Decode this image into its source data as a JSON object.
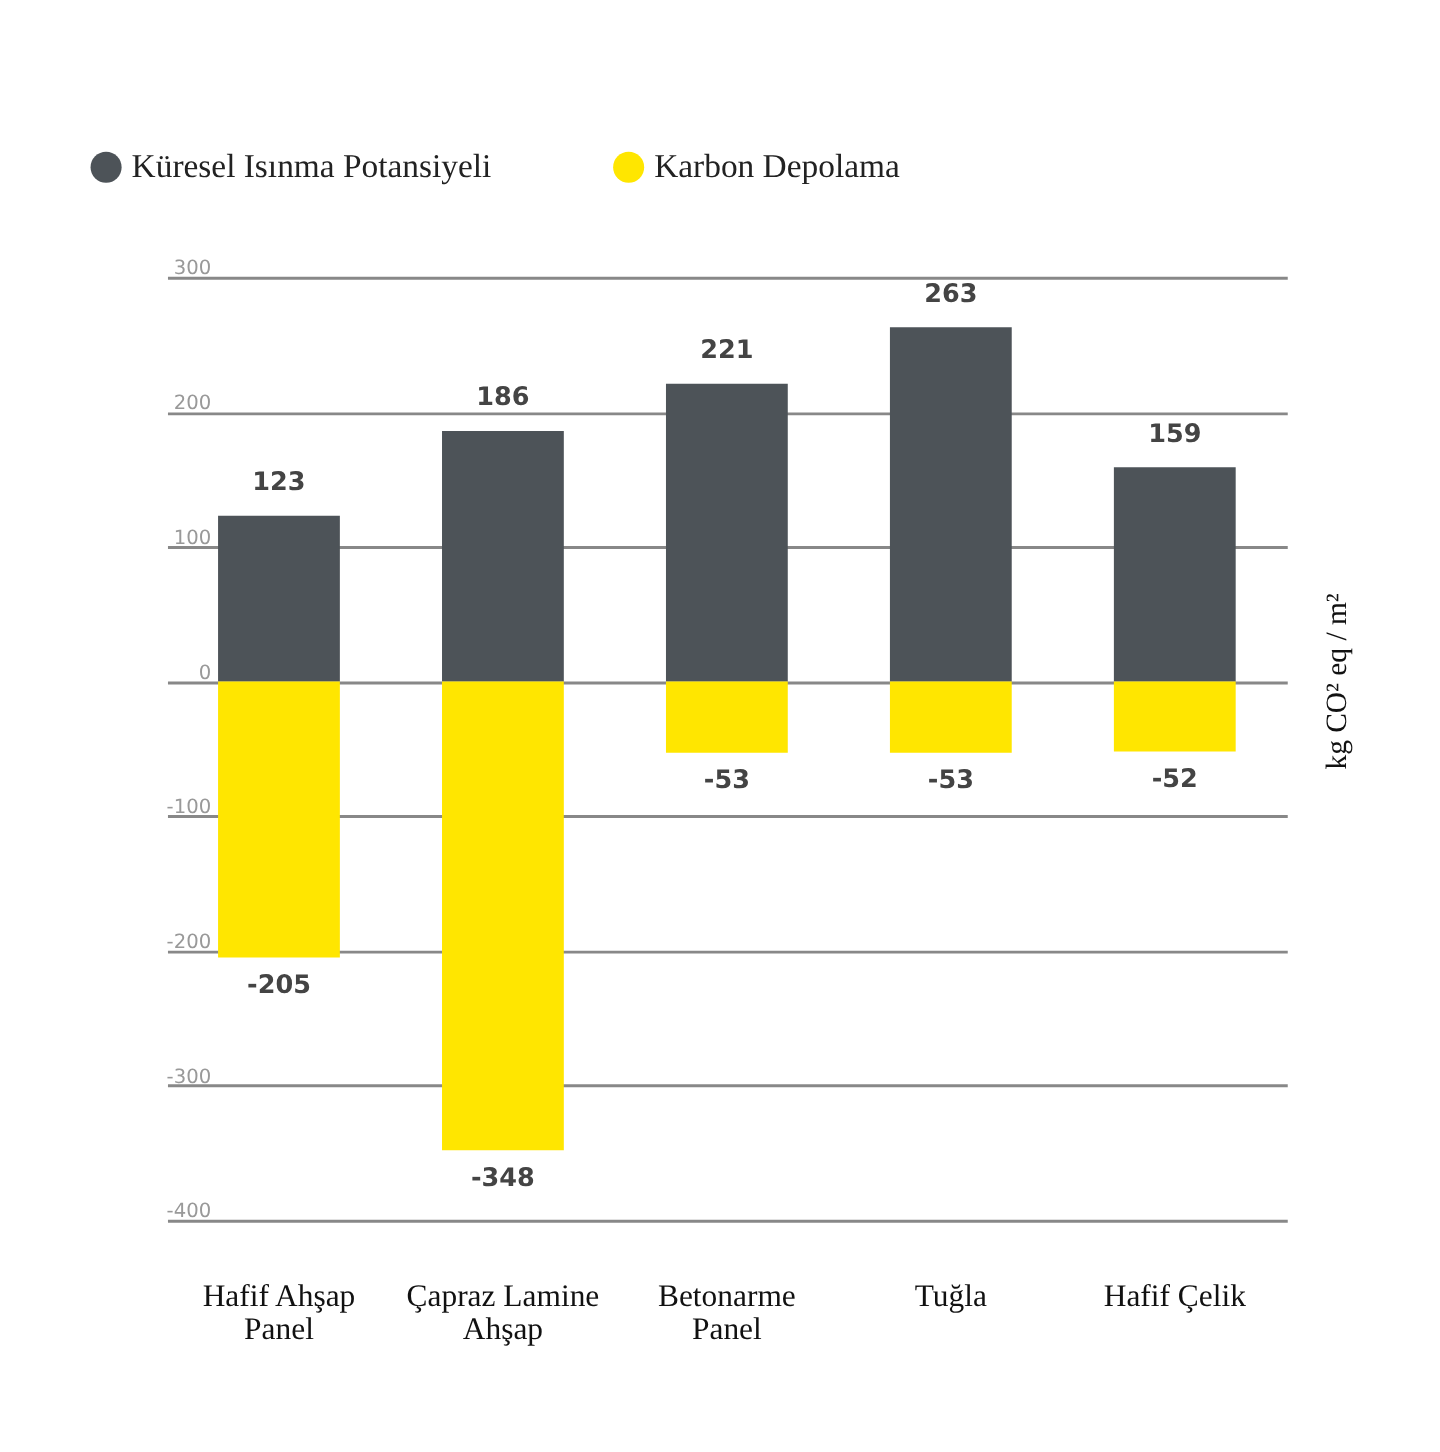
{
  "chart_data": {
    "type": "bar",
    "stacked": true,
    "categories": [
      "Hafif Ahşap Panel",
      "Çapraz Lamine Ahşap",
      "Betonarme Panel",
      "Tuğla",
      "Hafif Çelik"
    ],
    "series": [
      {
        "name": "Küresel Isınma Potansiyeli",
        "color": "#4d5358",
        "values": [
          123,
          186,
          221,
          263,
          159
        ]
      },
      {
        "name": "Karbon Depolama",
        "color": "#ffe600",
        "values": [
          -205,
          -348,
          -53,
          -53,
          -52
        ]
      }
    ],
    "ylabel": "kg CO² eq / m²",
    "ylim": [
      -400,
      300
    ],
    "yticks": [
      -400,
      -300,
      -200,
      -100,
      0,
      100,
      200,
      300
    ],
    "grid": "y",
    "legend": "top left",
    "data_labels": true
  }
}
